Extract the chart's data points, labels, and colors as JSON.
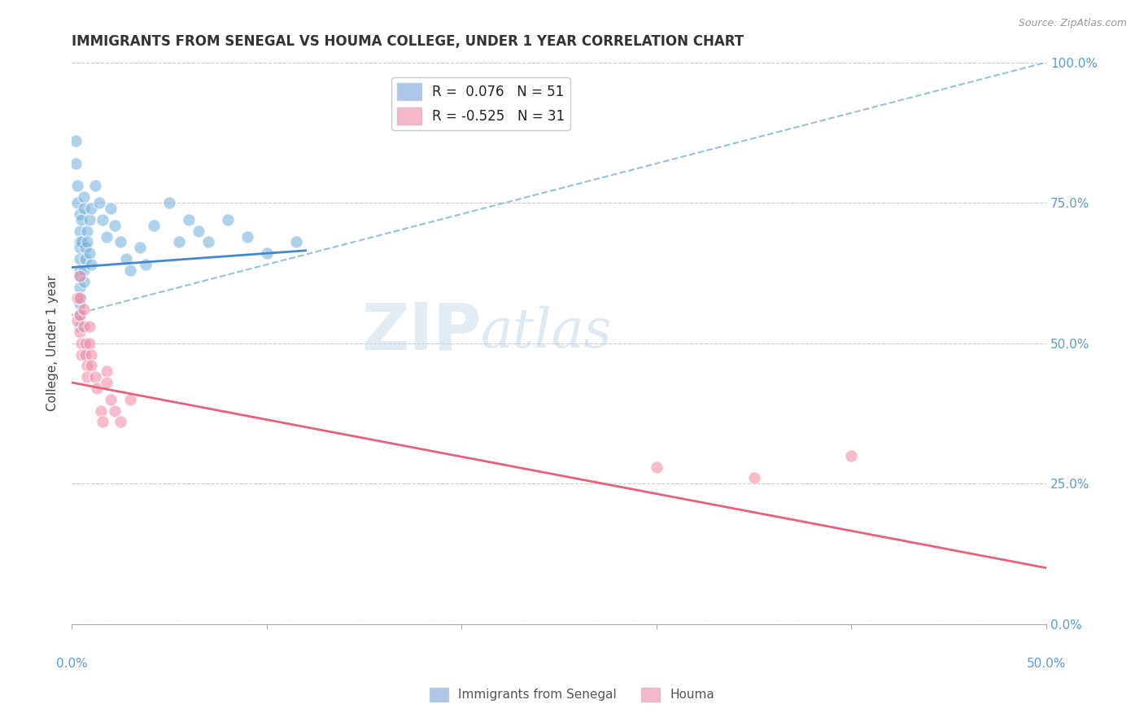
{
  "title": "IMMIGRANTS FROM SENEGAL VS HOUMA COLLEGE, UNDER 1 YEAR CORRELATION CHART",
  "source_text": "Source: ZipAtlas.com",
  "ylabel": "College, Under 1 year",
  "xlim": [
    0,
    0.5
  ],
  "ylim": [
    0,
    1.0
  ],
  "blue_scatter": [
    [
      0.002,
      0.86
    ],
    [
      0.002,
      0.82
    ],
    [
      0.003,
      0.78
    ],
    [
      0.003,
      0.75
    ],
    [
      0.004,
      0.73
    ],
    [
      0.004,
      0.7
    ],
    [
      0.004,
      0.68
    ],
    [
      0.004,
      0.67
    ],
    [
      0.004,
      0.65
    ],
    [
      0.004,
      0.63
    ],
    [
      0.004,
      0.62
    ],
    [
      0.004,
      0.6
    ],
    [
      0.004,
      0.58
    ],
    [
      0.004,
      0.57
    ],
    [
      0.004,
      0.55
    ],
    [
      0.004,
      0.53
    ],
    [
      0.005,
      0.72
    ],
    [
      0.005,
      0.68
    ],
    [
      0.006,
      0.76
    ],
    [
      0.006,
      0.74
    ],
    [
      0.006,
      0.63
    ],
    [
      0.006,
      0.61
    ],
    [
      0.007,
      0.67
    ],
    [
      0.007,
      0.65
    ],
    [
      0.008,
      0.7
    ],
    [
      0.008,
      0.68
    ],
    [
      0.009,
      0.72
    ],
    [
      0.009,
      0.66
    ],
    [
      0.01,
      0.74
    ],
    [
      0.01,
      0.64
    ],
    [
      0.012,
      0.78
    ],
    [
      0.014,
      0.75
    ],
    [
      0.016,
      0.72
    ],
    [
      0.018,
      0.69
    ],
    [
      0.02,
      0.74
    ],
    [
      0.022,
      0.71
    ],
    [
      0.025,
      0.68
    ],
    [
      0.028,
      0.65
    ],
    [
      0.03,
      0.63
    ],
    [
      0.035,
      0.67
    ],
    [
      0.038,
      0.64
    ],
    [
      0.042,
      0.71
    ],
    [
      0.05,
      0.75
    ],
    [
      0.055,
      0.68
    ],
    [
      0.06,
      0.72
    ],
    [
      0.065,
      0.7
    ],
    [
      0.07,
      0.68
    ],
    [
      0.08,
      0.72
    ],
    [
      0.09,
      0.69
    ],
    [
      0.1,
      0.66
    ],
    [
      0.115,
      0.68
    ]
  ],
  "pink_scatter": [
    [
      0.003,
      0.58
    ],
    [
      0.003,
      0.54
    ],
    [
      0.004,
      0.62
    ],
    [
      0.004,
      0.58
    ],
    [
      0.004,
      0.55
    ],
    [
      0.004,
      0.52
    ],
    [
      0.005,
      0.5
    ],
    [
      0.005,
      0.48
    ],
    [
      0.006,
      0.56
    ],
    [
      0.006,
      0.53
    ],
    [
      0.007,
      0.5
    ],
    [
      0.007,
      0.48
    ],
    [
      0.008,
      0.46
    ],
    [
      0.008,
      0.44
    ],
    [
      0.009,
      0.53
    ],
    [
      0.009,
      0.5
    ],
    [
      0.01,
      0.48
    ],
    [
      0.01,
      0.46
    ],
    [
      0.012,
      0.44
    ],
    [
      0.013,
      0.42
    ],
    [
      0.015,
      0.38
    ],
    [
      0.016,
      0.36
    ],
    [
      0.018,
      0.45
    ],
    [
      0.018,
      0.43
    ],
    [
      0.02,
      0.4
    ],
    [
      0.022,
      0.38
    ],
    [
      0.025,
      0.36
    ],
    [
      0.03,
      0.4
    ],
    [
      0.3,
      0.28
    ],
    [
      0.35,
      0.26
    ],
    [
      0.4,
      0.3
    ]
  ],
  "blue_line": {
    "x": [
      0.0,
      0.12
    ],
    "y": [
      0.635,
      0.665
    ]
  },
  "pink_line": {
    "x": [
      0.0,
      0.5
    ],
    "y": [
      0.43,
      0.1
    ]
  },
  "dashed_line": {
    "x": [
      0.0,
      0.5
    ],
    "y": [
      0.55,
      1.0
    ]
  },
  "title_color": "#333333",
  "blue_color": "#7ab4e0",
  "pink_color": "#f090a8",
  "blue_line_color": "#4488cc",
  "pink_line_color": "#e8607a",
  "dashed_line_color": "#88bbdd",
  "watermark_zip": "ZIP",
  "watermark_atlas": "atlas",
  "background_color": "#ffffff",
  "grid_color": "#cccccc",
  "ytick_positions": [
    0.0,
    0.25,
    0.5,
    0.75,
    1.0
  ],
  "ytick_labels": [
    "0.0%",
    "25.0%",
    "50.0%",
    "75.0%",
    "100.0%"
  ],
  "xtick_positions": [
    0.0,
    0.1,
    0.2,
    0.3,
    0.4,
    0.5
  ],
  "xtick_labels": [
    "0.0%",
    "",
    "",
    "",
    "",
    "50.0%"
  ],
  "bottom_xtick_labels": [
    "0.0%",
    "",
    "",
    "",
    "",
    "50.0%"
  ]
}
